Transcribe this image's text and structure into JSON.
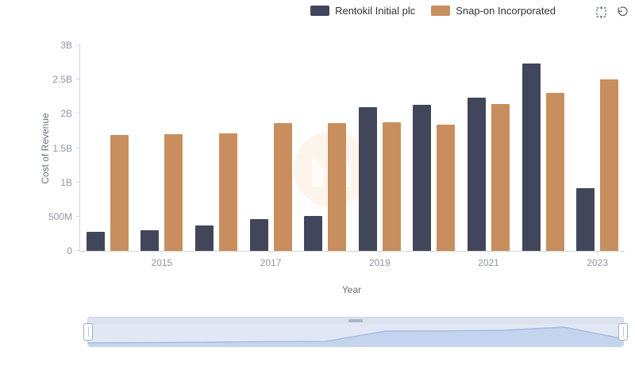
{
  "legend": {
    "items": [
      {
        "label": "Rentokil Initial plc",
        "color": "#42465a"
      },
      {
        "label": "Snap-on Incorporated",
        "color": "#c98e5e"
      }
    ]
  },
  "toolbar": {
    "icons": [
      {
        "name": "box-zoom-icon"
      },
      {
        "name": "restore-zoom-icon"
      }
    ]
  },
  "chart_data": {
    "type": "bar",
    "title": "",
    "xlabel": "Year",
    "ylabel": "Cost of Revenue",
    "categories": [
      "2014",
      "2015",
      "2016",
      "2017",
      "2018",
      "2019",
      "2020",
      "2021",
      "2022",
      "2023"
    ],
    "series": [
      {
        "name": "Rentokil Initial plc",
        "color": "#42465a",
        "values": [
          0.28,
          0.3,
          0.37,
          0.46,
          0.51,
          2.1,
          2.13,
          2.23,
          2.73,
          0.92
        ]
      },
      {
        "name": "Snap-on Incorporated",
        "color": "#c98e5e",
        "values": [
          1.69,
          1.7,
          1.72,
          1.86,
          1.87,
          1.88,
          1.84,
          2.14,
          2.31,
          2.5
        ]
      }
    ],
    "value_unit": "B",
    "ylim": [
      0,
      3
    ],
    "yticks": [
      {
        "value": 0,
        "label": "0"
      },
      {
        "value": 0.5,
        "label": "500M"
      },
      {
        "value": 1,
        "label": "1B"
      },
      {
        "value": 1.5,
        "label": "1.5B"
      },
      {
        "value": 2,
        "label": "2B"
      },
      {
        "value": 2.5,
        "label": "2.5B"
      },
      {
        "value": 3,
        "label": "3B"
      }
    ],
    "xticks": [
      {
        "index": 1,
        "label": "2015"
      },
      {
        "index": 3,
        "label": "2017"
      },
      {
        "index": 5,
        "label": "2019"
      },
      {
        "index": 7,
        "label": "2021"
      },
      {
        "index": 9,
        "label": "2023"
      }
    ],
    "grid": false,
    "legend_position": "top-right",
    "navigator": {
      "range_start_pct": 0,
      "range_end_pct": 100,
      "shadow_series": "Rentokil Initial plc"
    }
  }
}
